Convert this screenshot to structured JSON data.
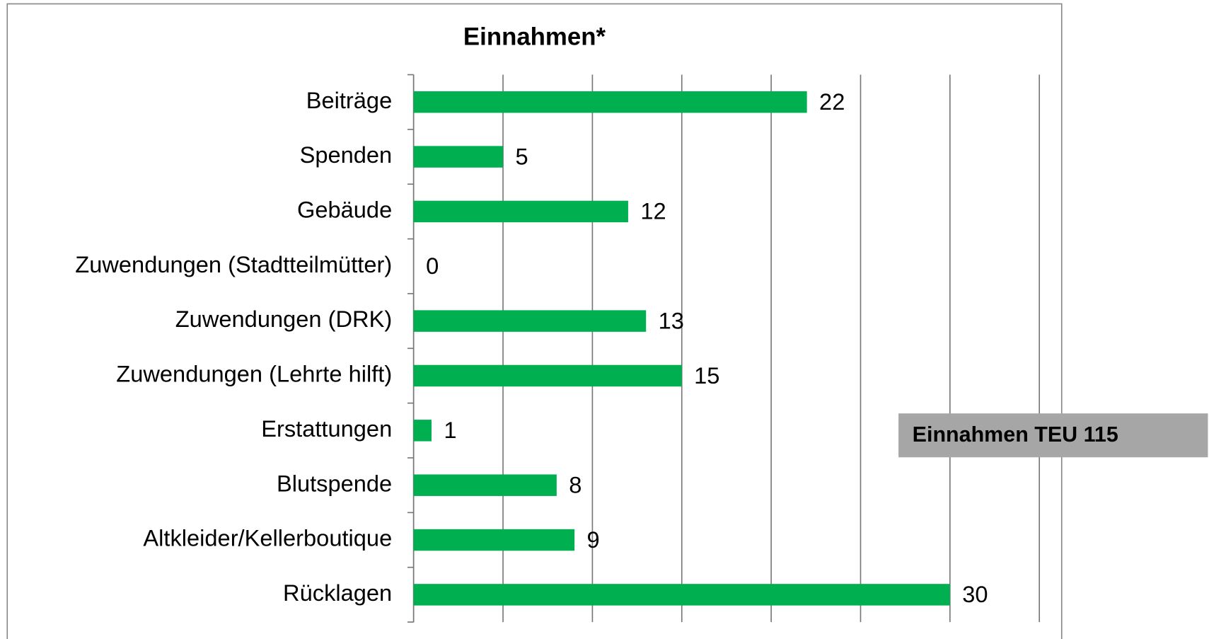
{
  "chart_data": {
    "type": "bar",
    "orientation": "horizontal",
    "title": "Einnahmen*",
    "categories": [
      "Beiträge",
      "Spenden",
      "Gebäude",
      "Zuwendungen (Stadtteilmütter)",
      "Zuwendungen (DRK)",
      "Zuwendungen (Lehrte hilft)",
      "Erstattungen",
      "Blutspende",
      "Altkleider/Kellerboutique",
      "Rücklagen"
    ],
    "values": [
      22,
      5,
      12,
      0,
      13,
      15,
      1,
      8,
      9,
      30
    ],
    "color": "#00b050",
    "xlim": [
      0,
      35
    ],
    "xticks": [
      0,
      5,
      10,
      15,
      20,
      25,
      30,
      35
    ],
    "grid": true,
    "annotation": "Einnahmen TEU 115"
  }
}
